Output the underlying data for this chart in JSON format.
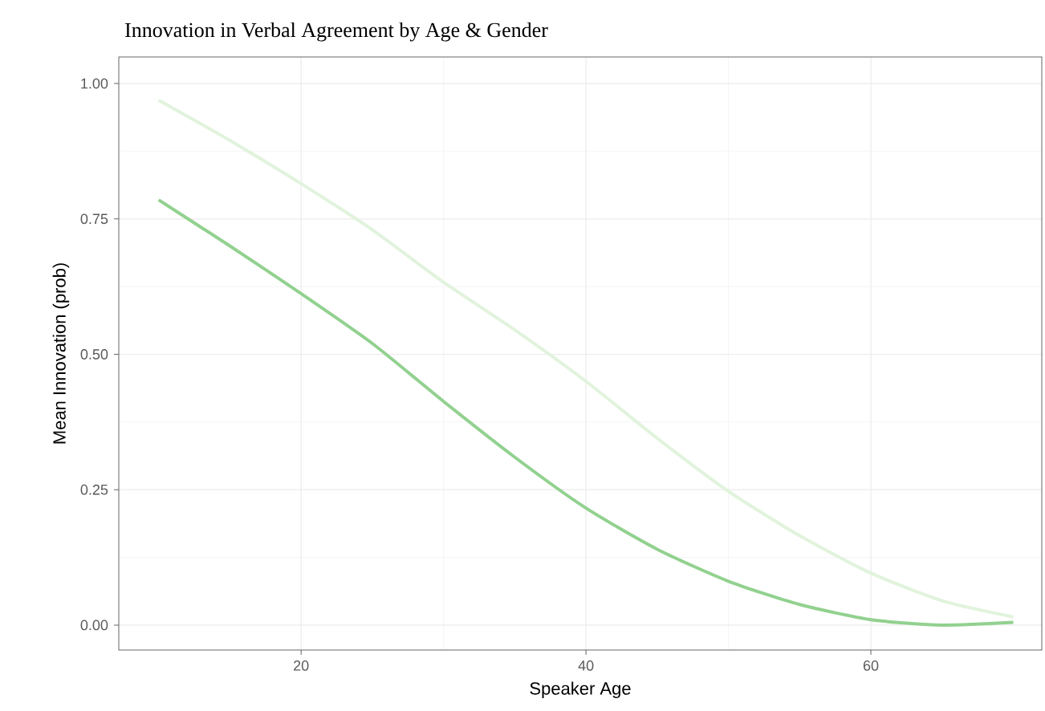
{
  "chart_data": {
    "type": "line",
    "title": "Innovation in Verbal Agreement by Age & Gender",
    "xlabel": "Speaker Age",
    "ylabel": "Mean Innovation (prob)",
    "xlim": [
      7.2,
      72
    ],
    "ylim": [
      -0.046,
      1.049
    ],
    "xticks": [
      20,
      40,
      60
    ],
    "yticks": [
      {
        "value": 0,
        "label": "0.00"
      },
      {
        "value": 0.25,
        "label": "0.25"
      },
      {
        "value": 0.5,
        "label": "0.50"
      },
      {
        "value": 0.75,
        "label": "0.75"
      },
      {
        "value": 1,
        "label": "1.00"
      }
    ],
    "grid": true,
    "marker": "none",
    "line_style": "solid",
    "series": [
      {
        "color": "#e1f3dc",
        "x": [
          10,
          15,
          20,
          25,
          30,
          35,
          40,
          45,
          50,
          55,
          60,
          65,
          70
        ],
        "values": [
          0.969,
          0.895,
          0.815,
          0.73,
          0.633,
          0.545,
          0.45,
          0.345,
          0.247,
          0.165,
          0.096,
          0.045,
          0.015
        ]
      },
      {
        "color": "#92d18f",
        "x": [
          10,
          15,
          20,
          25,
          30,
          35,
          40,
          45,
          50,
          55,
          60,
          65,
          70
        ],
        "values": [
          0.785,
          0.7,
          0.612,
          0.52,
          0.413,
          0.31,
          0.216,
          0.14,
          0.081,
          0.038,
          0.01,
          0.0,
          0.005
        ]
      }
    ]
  }
}
